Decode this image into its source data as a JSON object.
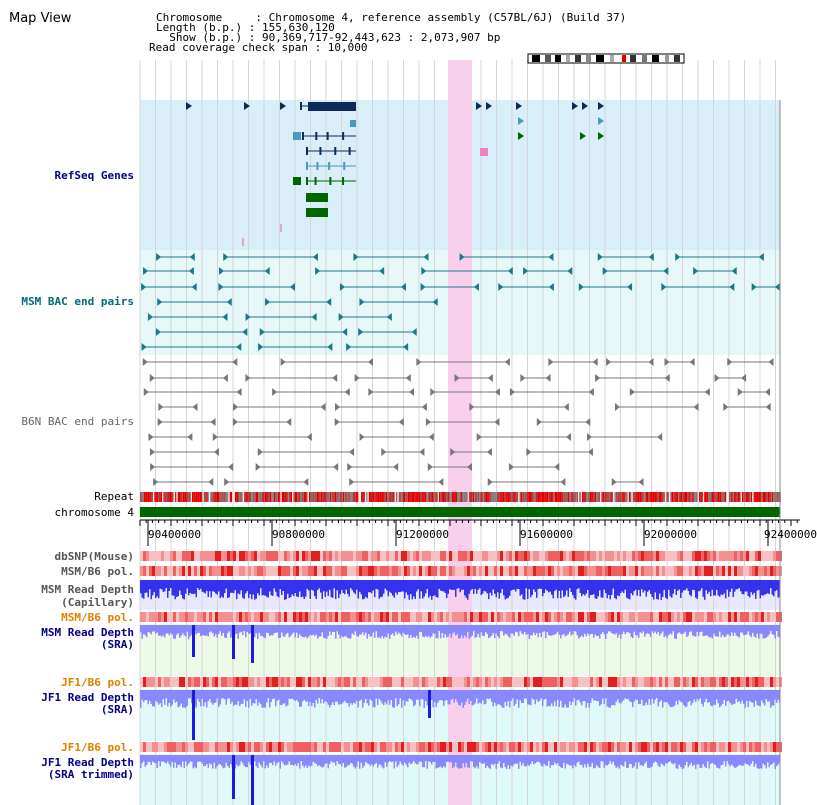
{
  "view": {
    "title": "Map View"
  },
  "info": {
    "line1": "Chromosome     : Chromosome 4, reference assembly (C57BL/6J) (Build 37)",
    "line2": "Length (b.p.) : 155,630,120",
    "line3": "  Show (b.p.) : 90,369,717-92,443,623 : 2,073,907 bp",
    "line4": "Read coverage check span : 10,000"
  },
  "tracks": {
    "refseq": "RefSeq Genes",
    "msm_bac": "MSM BAC end pairs",
    "b6n_bac": "B6N BAC end pairs",
    "repeat": "Repeat",
    "chromosome": "chromosome 4",
    "dbsnp": "dbSNP(Mouse)",
    "msm_b6_pol_1": "MSM/B6 pol.",
    "msm_depth_cap_1": "MSM Read Depth",
    "msm_depth_cap_2": "(Capillary)",
    "msm_b6_pol_2": "MSM/B6 pol.",
    "msm_depth_sra_1": "MSM Read Depth",
    "msm_depth_sra_2": "(SRA)",
    "jf1_b6_pol_1": "JF1/B6 pol.",
    "jf1_depth_sra_1": "JF1 Read Depth",
    "jf1_depth_sra_2": "(SRA)",
    "jf1_b6_pol_2": "JF1/B6 pol.",
    "jf1_depth_trim_1": "JF1 Read Depth",
    "jf1_depth_trim_2": "(SRA trimmed)"
  },
  "ruler": {
    "ticks": [
      "90400000",
      "90800000",
      "91200000",
      "91600000",
      "92000000",
      "92400000"
    ]
  },
  "colors": {
    "refseq_bg": "#d8eef8",
    "bac_bg": "#e6f8f8",
    "highlight": "#f8d0ec",
    "chromosome": "#006600",
    "repeat": "#e00000",
    "depth_blue": "#3333ee",
    "depth_lavender": "#8888ff",
    "pol_red": "#f04040"
  }
}
